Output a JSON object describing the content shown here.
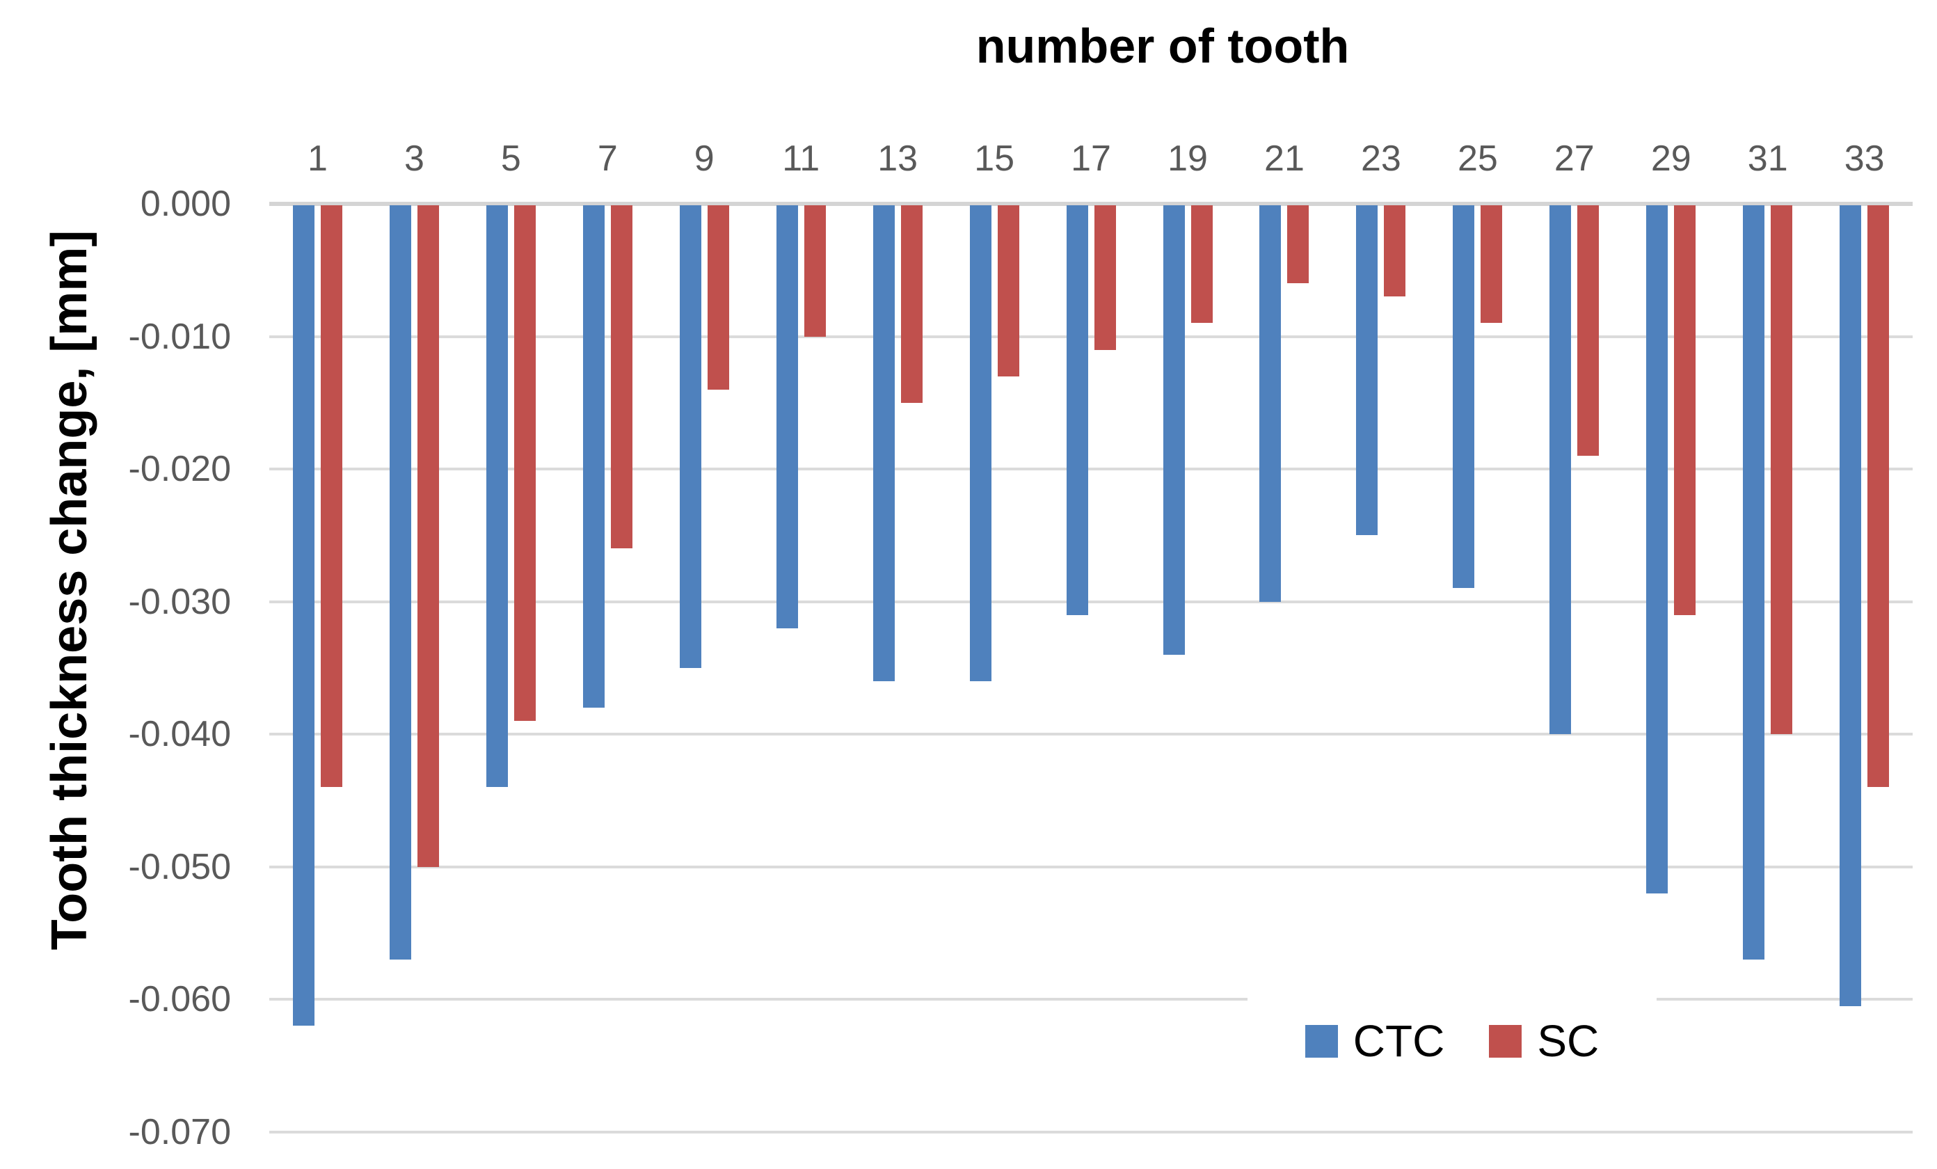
{
  "chart_data": {
    "type": "bar",
    "title": "number of tooth",
    "ylabel": "Tooth thickness change, [mm]",
    "xlabel": "",
    "categories": [
      "1",
      "3",
      "5",
      "7",
      "9",
      "11",
      "13",
      "15",
      "17",
      "19",
      "21",
      "23",
      "25",
      "27",
      "29",
      "31",
      "33"
    ],
    "series": [
      {
        "name": "CTC",
        "color": "#4F81BD",
        "values": [
          -0.062,
          -0.057,
          -0.044,
          -0.038,
          -0.035,
          -0.032,
          -0.036,
          -0.036,
          -0.031,
          -0.034,
          -0.03,
          -0.025,
          -0.029,
          -0.04,
          -0.052,
          -0.057,
          -0.0605
        ]
      },
      {
        "name": "SC",
        "color": "#C0504D",
        "values": [
          -0.044,
          -0.05,
          -0.039,
          -0.026,
          -0.014,
          -0.01,
          -0.015,
          -0.013,
          -0.011,
          -0.009,
          -0.006,
          -0.007,
          -0.009,
          -0.019,
          -0.031,
          -0.04,
          -0.044
        ]
      }
    ],
    "y_ticks": [
      "0.000",
      "-0.010",
      "-0.020",
      "-0.030",
      "-0.040",
      "-0.050",
      "-0.060",
      "-0.070"
    ],
    "ylim": [
      -0.07,
      0.0
    ],
    "grid": true,
    "gridline_color": "#D9D9D9",
    "tick_label_color": "#595959",
    "legend_position": "inside-bottom-right",
    "legend_items": [
      "CTC",
      "SC"
    ]
  }
}
